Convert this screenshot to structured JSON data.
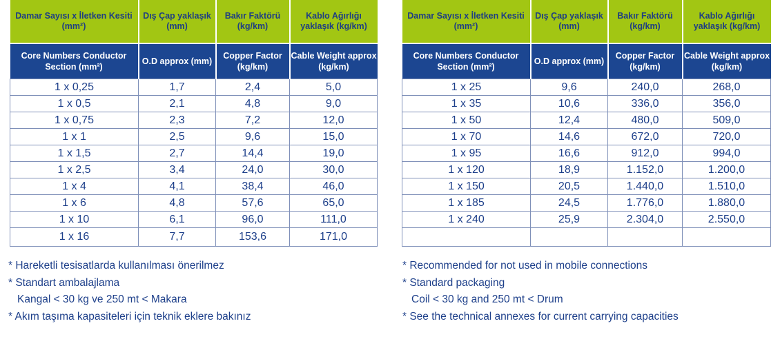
{
  "headers_tr": [
    "Damar Sayısı x İletken Kesiti (mm²)",
    "Dış Çap yaklaşık (mm)",
    "Bakır Faktörü (kg/km)",
    "Kablo Ağırlığı yaklaşık (kg/km)"
  ],
  "headers_en": [
    "Core Numbers Conductor Section (mm²)",
    "O.D approx (mm)",
    "Copper Factor (kg/km)",
    "Cable Weight approx (kg/km)"
  ],
  "left_rows": [
    [
      "1 x 0,25",
      "1,7",
      "2,4",
      "5,0"
    ],
    [
      "1 x 0,5",
      "2,1",
      "4,8",
      "9,0"
    ],
    [
      "1 x 0,75",
      "2,3",
      "7,2",
      "12,0"
    ],
    [
      "1 x 1",
      "2,5",
      "9,6",
      "15,0"
    ],
    [
      "1 x 1,5",
      "2,7",
      "14,4",
      "19,0"
    ],
    [
      "1 x 2,5",
      "3,4",
      "24,0",
      "30,0"
    ],
    [
      "1 x 4",
      "4,1",
      "38,4",
      "46,0"
    ],
    [
      "1 x 6",
      "4,8",
      "57,6",
      "65,0"
    ],
    [
      "1 x 10",
      "6,1",
      "96,0",
      "111,0"
    ],
    [
      "1 x 16",
      "7,7",
      "153,6",
      "171,0"
    ]
  ],
  "right_rows": [
    [
      "1 x 25",
      "9,6",
      "240,0",
      "268,0"
    ],
    [
      "1 x 35",
      "10,6",
      "336,0",
      "356,0"
    ],
    [
      "1 x 50",
      "12,4",
      "480,0",
      "509,0"
    ],
    [
      "1 x 70",
      "14,6",
      "672,0",
      "720,0"
    ],
    [
      "1 x 95",
      "16,6",
      "912,0",
      "994,0"
    ],
    [
      "1 x 120",
      "18,9",
      "1.152,0",
      "1.200,0"
    ],
    [
      "1 x 150",
      "20,5",
      "1.440,0",
      "1.510,0"
    ],
    [
      "1 x 185",
      "24,5",
      "1.776,0",
      "1.880,0"
    ],
    [
      "1 x 240",
      "25,9",
      "2.304,0",
      "2.550,0"
    ],
    [
      "",
      "",
      "",
      ""
    ]
  ],
  "notes_tr": [
    "* Hareketli tesisatlarda kullanılması önerilmez",
    "* Standart ambalajlama",
    "Kangal < 30 kg ve 250 mt < Makara",
    "* Akım taşıma kapasiteleri için teknik eklere bakınız"
  ],
  "notes_en": [
    "* Recommended for not used in mobile connections",
    "* Standard packaging",
    "Coil < 30 kg and 250 mt < Drum",
    "* See the technical annexes for current carrying capacities"
  ]
}
